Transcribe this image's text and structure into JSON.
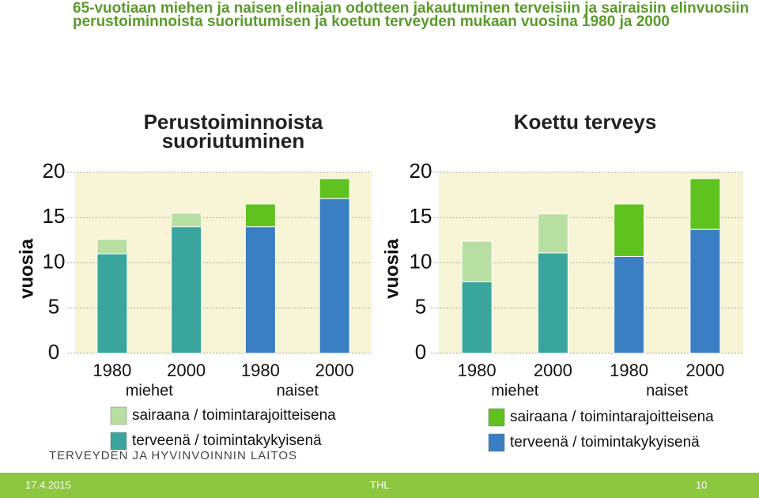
{
  "header": {
    "title": "65-vuotiaan miehen ja naisen elinajan odotteen jakautuminen terveisiin ja sairaisiin elinvuosiin perustoiminnoista suoriutumisen ja koetun terveyden mukaan vuosina 1980 ja 2000"
  },
  "chart_data": [
    {
      "type": "stacked-bar",
      "title": "Perustoiminnoista suoriutuminen",
      "y_label": "vuosia",
      "categories": [
        "1980",
        "2000",
        "1980",
        "2000"
      ],
      "groups": [
        "miehet",
        "naiset"
      ],
      "ylim": [
        0,
        20
      ],
      "yticks": [
        0,
        5,
        10,
        15,
        20
      ],
      "grid": true,
      "series": [
        {
          "name": "terveenä / toimintakykyisenä",
          "color": "#3aa59c",
          "colors": [
            "#3aa59c",
            "#3aa59c",
            "#3a7fc4",
            "#3a7fc4"
          ],
          "values": [
            11.0,
            14.0,
            14.0,
            17.1
          ]
        },
        {
          "name": "sairaana / toimintarajoitteisena",
          "color": "#b8dfa2",
          "colors": [
            "#b8dfa2",
            "#b8dfa2",
            "#5fc21e",
            "#5fc21e"
          ],
          "values": [
            1.6,
            1.5,
            2.5,
            2.2
          ]
        }
      ]
    },
    {
      "type": "stacked-bar",
      "title": "Koettu terveys",
      "y_label": "vuosia",
      "categories": [
        "1980",
        "2000",
        "1980",
        "2000"
      ],
      "groups": [
        "miehet",
        "naiset"
      ],
      "ylim": [
        0,
        20
      ],
      "yticks": [
        0,
        5,
        10,
        15,
        20
      ],
      "grid": true,
      "series": [
        {
          "name": "terveenä / toimintakykyisenä",
          "color": "#3a7fc4",
          "colors": [
            "#3aa59c",
            "#3aa59c",
            "#3a7fc4",
            "#3a7fc4"
          ],
          "values": [
            7.9,
            11.1,
            10.7,
            13.7
          ]
        },
        {
          "name": "sairaana / toimintarajoitteisena",
          "color": "#5fc21e",
          "colors": [
            "#b8dfa2",
            "#b8dfa2",
            "#5fc21e",
            "#5fc21e"
          ],
          "values": [
            4.5,
            4.3,
            5.8,
            5.6
          ]
        }
      ]
    }
  ],
  "footer": {
    "logo": "TERVEYDEN JA HYVINVOINNIN LAITOS",
    "date": "17.4.2015",
    "org": "THL",
    "page": "10"
  }
}
